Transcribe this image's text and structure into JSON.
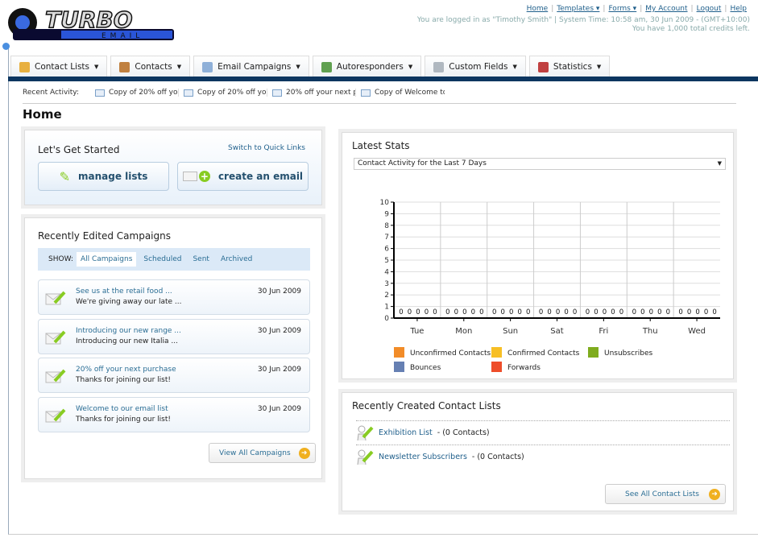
{
  "brand": {
    "logo_text": "TURBO",
    "logo_sub": "EMAIL"
  },
  "toplinks": {
    "items": [
      "Home",
      "Templates ▾",
      "Forms ▾",
      "My Account",
      "Logout",
      "Help"
    ],
    "login_info": "You are logged in as \"Timothy Smith\" | System Time: 10:58 am, 30 Jun 2009 - (GMT+10:00)",
    "credits": "You have 1,000 total credits left."
  },
  "nav": {
    "tabs": [
      {
        "label": "Contact Lists",
        "icon": "contact-lists-icon",
        "color": "#e8b040"
      },
      {
        "label": "Contacts",
        "icon": "contacts-icon",
        "color": "#c08040"
      },
      {
        "label": "Email Campaigns",
        "icon": "envelope-icon",
        "color": "#8fb0d8"
      },
      {
        "label": "Autoresponders",
        "icon": "autoresponder-icon",
        "color": "#60a050"
      },
      {
        "label": "Custom Fields",
        "icon": "custom-fields-icon",
        "color": "#b0b8c0"
      },
      {
        "label": "Statistics",
        "icon": "statistics-icon",
        "color": "#c04040"
      }
    ]
  },
  "recent": {
    "label": "Recent Activity:",
    "items": [
      "Copy of 20% off yo",
      "Copy of 20% off yo",
      "20% off your next p",
      "Copy of Welcome to"
    ]
  },
  "page_title": "Home",
  "get_started": {
    "title": "Let's Get Started",
    "switch": "Switch to Quick Links",
    "manage": "manage lists",
    "create": "create an email"
  },
  "campaigns": {
    "title": "Recently Edited Campaigns",
    "show_label": "SHOW:",
    "filters": [
      "All Campaigns",
      "Scheduled",
      "Sent",
      "Archived"
    ],
    "active_filter": "All Campaigns",
    "items": [
      {
        "title": "See us at the retail food ...",
        "subtitle": "We're giving away our late ...",
        "date": "30 Jun 2009"
      },
      {
        "title": "Introducing our new range ...",
        "subtitle": "Introducing our new Italia ...",
        "date": "30 Jun 2009"
      },
      {
        "title": "20% off your next purchase",
        "subtitle": "Thanks for joining our list!",
        "date": "30 Jun 2009"
      },
      {
        "title": "Welcome to our email list",
        "subtitle": "Thanks for joining our list!",
        "date": "30 Jun 2009"
      }
    ],
    "view_all": "View All Campaigns"
  },
  "stats": {
    "title": "Latest Stats",
    "select": "Contact Activity for the Last 7 Days"
  },
  "chart_data": {
    "type": "bar",
    "categories": [
      "Tue",
      "Mon",
      "Sun",
      "Sat",
      "Fri",
      "Thu",
      "Wed"
    ],
    "ylim": [
      0,
      10
    ],
    "yticks": [
      0,
      1,
      2,
      3,
      4,
      5,
      6,
      7,
      8,
      9,
      10
    ],
    "grid": true,
    "legend": "bottom",
    "series": [
      {
        "name": "Unconfirmed Contacts",
        "color": "#f28c28",
        "values": [
          0,
          0,
          0,
          0,
          0,
          0,
          0
        ]
      },
      {
        "name": "Confirmed Contacts",
        "color": "#f7bf25",
        "values": [
          0,
          0,
          0,
          0,
          0,
          0,
          0
        ]
      },
      {
        "name": "Unsubscribes",
        "color": "#7fac1e",
        "values": [
          0,
          0,
          0,
          0,
          0,
          0,
          0
        ]
      },
      {
        "name": "Bounces",
        "color": "#6680b3",
        "values": [
          0,
          0,
          0,
          0,
          0,
          0,
          0
        ]
      },
      {
        "name": "Forwards",
        "color": "#ee4d2a",
        "values": [
          0,
          0,
          0,
          0,
          0,
          0,
          0
        ]
      }
    ]
  },
  "contact_lists": {
    "title": "Recently Created Contact Lists",
    "items": [
      {
        "name": "Exhibition List",
        "count": "- (0 Contacts)"
      },
      {
        "name": "Newsletter Subscribers",
        "count": "- (0 Contacts)"
      }
    ],
    "see_all": "See All Contact Lists"
  }
}
